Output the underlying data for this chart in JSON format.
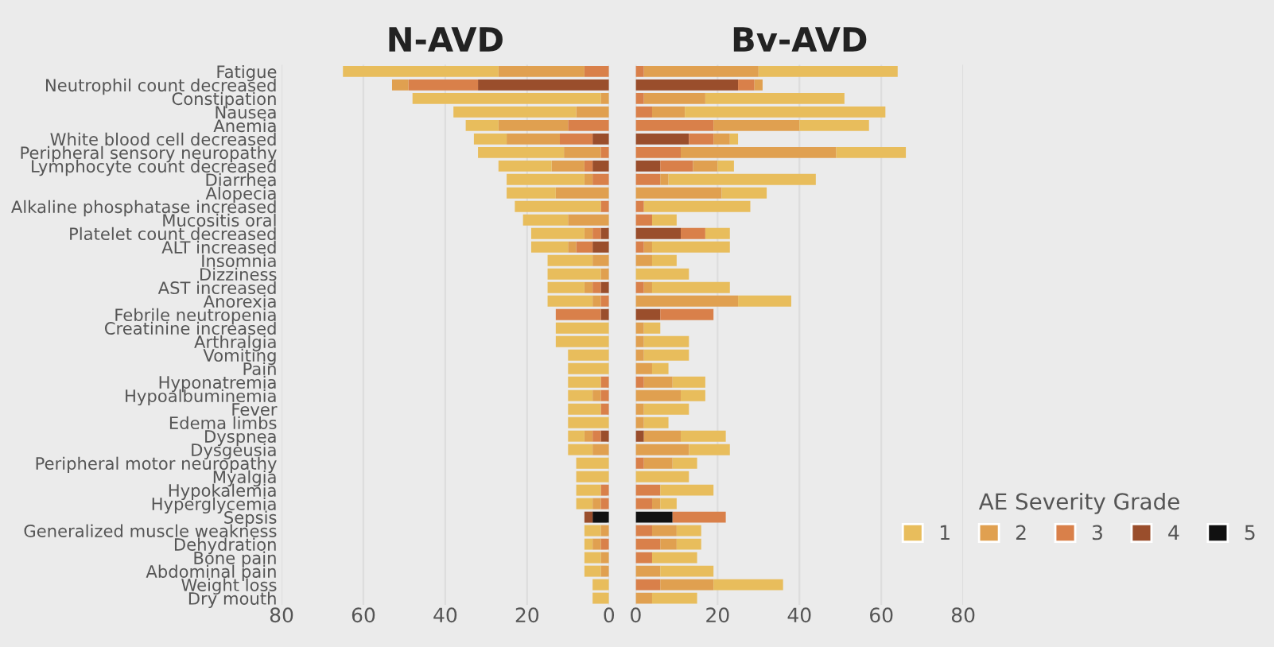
{
  "chart_data": [
    {
      "type": "bar",
      "orientation": "horizontal",
      "stacked": true,
      "title": "N-AVD",
      "grid": "x",
      "categories": [
        "Fatigue",
        "Neutrophil count decreased",
        "Constipation",
        "Nausea",
        "Anemia",
        "White blood cell decreased",
        "Peripheral sensory neuropathy",
        "Lymphocyte count decreased",
        "Diarrhea",
        "Alopecia",
        "Alkaline phosphatase increased",
        "Mucositis oral",
        "Platelet count decreased",
        "ALT increased",
        "Insomnia",
        "Dizziness",
        "AST increased",
        "Anorexia",
        "Febrile neutropenia",
        "Creatinine increased",
        "Arthralgia",
        "Vomiting",
        "Pain",
        "Hyponatremia",
        "Hypoalbuminemia",
        "Fever",
        "Edema limbs",
        "Dyspnea",
        "Dysgeusia",
        "Peripheral motor neuropathy",
        "Myalgia",
        "Hypokalemia",
        "Hyperglycemia",
        "Sepsis",
        "Generalized muscle weakness",
        "Dehydration",
        "Bone pain",
        "Abdominal pain",
        "Weight loss",
        "Dry mouth"
      ],
      "xlim": [
        80,
        0
      ],
      "xticks": [
        80,
        60,
        40,
        20,
        0
      ],
      "series": [
        {
          "color": "#111111",
          "values": [
            0,
            0,
            0,
            0,
            0,
            0,
            0,
            0,
            0,
            0,
            0,
            0,
            0,
            0,
            0,
            0,
            0,
            0,
            0,
            0,
            0,
            0,
            0,
            0,
            0,
            0,
            0,
            0,
            0,
            0,
            0,
            0,
            0,
            4,
            0,
            0,
            0,
            0,
            0,
            0
          ]
        },
        {
          "color": "#9a4e2c",
          "values": [
            0,
            32,
            0,
            0,
            0,
            4,
            0,
            4,
            0,
            0,
            0,
            0,
            2,
            4,
            0,
            0,
            2,
            0,
            2,
            0,
            0,
            0,
            0,
            0,
            0,
            0,
            0,
            2,
            0,
            0,
            0,
            0,
            0,
            2,
            0,
            0,
            0,
            0,
            0,
            0
          ]
        },
        {
          "color": "#d9804a",
          "values": [
            6,
            17,
            0,
            0,
            10,
            8,
            2,
            2,
            4,
            0,
            2,
            0,
            2,
            4,
            0,
            0,
            2,
            2,
            11,
            0,
            0,
            0,
            0,
            2,
            2,
            2,
            0,
            2,
            0,
            0,
            0,
            2,
            2,
            0,
            0,
            2,
            0,
            0,
            0,
            0
          ]
        },
        {
          "color": "#e0a050",
          "values": [
            21,
            4,
            2,
            8,
            17,
            13,
            9,
            8,
            2,
            13,
            0,
            10,
            2,
            2,
            4,
            2,
            2,
            2,
            0,
            0,
            0,
            0,
            0,
            0,
            2,
            0,
            0,
            2,
            4,
            0,
            0,
            0,
            2,
            0,
            2,
            2,
            2,
            2,
            0,
            0
          ]
        },
        {
          "color": "#e8bd5c",
          "values": [
            38,
            0,
            46,
            30,
            8,
            8,
            21,
            13,
            19,
            12,
            21,
            11,
            13,
            9,
            11,
            13,
            9,
            11,
            0,
            13,
            13,
            10,
            10,
            8,
            6,
            8,
            10,
            4,
            6,
            8,
            8,
            6,
            4,
            0,
            4,
            2,
            4,
            4,
            4,
            4
          ]
        }
      ]
    },
    {
      "type": "bar",
      "orientation": "horizontal",
      "stacked": true,
      "title": "Bv-AVD",
      "grid": "x",
      "tick_labels": "x",
      "categories": [
        null,
        null,
        null,
        null,
        null,
        null,
        null,
        null,
        null,
        null,
        null,
        null,
        null,
        null,
        null,
        null,
        null,
        null,
        null,
        null,
        null,
        null,
        null,
        null,
        null,
        null,
        null,
        null,
        null,
        null,
        null,
        null,
        null,
        null,
        null,
        null,
        null,
        null,
        null,
        null
      ],
      "xlim": [
        0,
        80
      ],
      "xticks": [
        0,
        20,
        40,
        60,
        80
      ],
      "legend": "bottom right",
      "legend_title": "AE Severity Grade",
      "series": [
        {
          "name": "5",
          "color": "#111111",
          "values": [
            0,
            0,
            0,
            0,
            0,
            0,
            0,
            0,
            0,
            0,
            0,
            0,
            0,
            0,
            0,
            0,
            0,
            0,
            0,
            0,
            0,
            0,
            0,
            0,
            0,
            0,
            0,
            0,
            0,
            0,
            0,
            0,
            0,
            9,
            0,
            0,
            0,
            0,
            0,
            0
          ]
        },
        {
          "name": "4",
          "color": "#9a4e2c",
          "values": [
            0,
            25,
            0,
            0,
            0,
            13,
            0,
            6,
            0,
            0,
            0,
            0,
            11,
            0,
            0,
            0,
            0,
            0,
            6,
            0,
            0,
            0,
            0,
            0,
            0,
            0,
            0,
            2,
            0,
            0,
            0,
            0,
            0,
            0,
            0,
            0,
            0,
            0,
            0,
            0
          ]
        },
        {
          "name": "3",
          "color": "#d9804a",
          "values": [
            2,
            4,
            2,
            4,
            19,
            6,
            11,
            8,
            6,
            0,
            2,
            4,
            6,
            2,
            0,
            0,
            2,
            0,
            13,
            0,
            0,
            0,
            0,
            2,
            0,
            0,
            0,
            0,
            0,
            2,
            0,
            6,
            4,
            13,
            4,
            6,
            4,
            0,
            6,
            0
          ]
        },
        {
          "name": "2",
          "color": "#e0a050",
          "values": [
            28,
            2,
            15,
            8,
            21,
            4,
            38,
            6,
            2,
            21,
            0,
            0,
            0,
            2,
            4,
            0,
            2,
            25,
            0,
            2,
            2,
            2,
            4,
            7,
            11,
            2,
            2,
            9,
            13,
            7,
            0,
            0,
            2,
            0,
            6,
            4,
            0,
            6,
            13,
            4
          ]
        },
        {
          "name": "1",
          "color": "#e8bd5c",
          "values": [
            34,
            0,
            34,
            49,
            17,
            2,
            17,
            4,
            36,
            11,
            26,
            6,
            6,
            19,
            6,
            13,
            19,
            13,
            0,
            4,
            11,
            11,
            4,
            8,
            6,
            11,
            6,
            11,
            10,
            6,
            13,
            13,
            4,
            0,
            6,
            6,
            11,
            13,
            17,
            11
          ]
        }
      ]
    }
  ]
}
